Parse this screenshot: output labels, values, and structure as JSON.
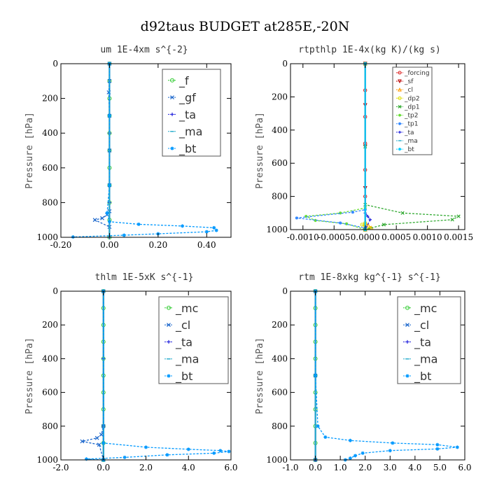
{
  "title": "d92taus  BUDGET at285E,-20N",
  "chart_data": [
    {
      "type": "line",
      "title": "um  1E-4xm s^{-2}",
      "ylabel": "Pressure [hPa]",
      "xlim": [
        -0.2,
        0.5
      ],
      "ylim": [
        1000,
        0
      ],
      "xticks": [
        -0.2,
        0,
        0.2,
        0.4
      ],
      "xtick_labels": [
        "-0.20",
        "0.00",
        "0.20",
        "0.40"
      ],
      "yticks": [
        0,
        200,
        400,
        600,
        800,
        1000
      ],
      "ytick_labels": [
        "0",
        "200",
        "400",
        "600",
        "800",
        "1000"
      ],
      "legend_style": "large",
      "series": [
        {
          "name": "_f",
          "color": "#33cc33",
          "marker": "o",
          "x": [
            0.0,
            0.0,
            0.0,
            0.0,
            0.0,
            0.0,
            0.0,
            0.0,
            0.0,
            0.0,
            0.0
          ],
          "y": [
            0,
            100,
            200,
            300,
            400,
            500,
            600,
            700,
            800,
            900,
            1000
          ]
        },
        {
          "name": "_gf",
          "color": "#1a66cc",
          "marker": "x",
          "x": [
            0.0,
            0.0,
            -0.003,
            0.0,
            0.0,
            0.0,
            0.0,
            -0.01,
            -0.03,
            -0.06,
            0.0
          ],
          "y": [
            0,
            100,
            165,
            300,
            500,
            700,
            850,
            870,
            890,
            900,
            940
          ]
        },
        {
          "name": "_ta",
          "color": "#2222dd",
          "marker": "+",
          "x": [
            0.0,
            0.0,
            0.0,
            0.0
          ],
          "y": [
            0,
            400,
            800,
            1000
          ]
        },
        {
          "name": "_ma",
          "color": "#22aacc",
          "marker": "-",
          "x": [
            0.0,
            0.0,
            0.0
          ],
          "y": [
            0,
            500,
            1000
          ]
        },
        {
          "name": "_bt",
          "color": "#0099ff",
          "marker": "*",
          "x": [
            0.0,
            0.0,
            0.0,
            -0.01,
            0.0,
            0.12,
            0.3,
            0.43,
            0.44,
            0.4,
            0.2,
            0.06,
            -0.15
          ],
          "y": [
            0,
            300,
            700,
            860,
            910,
            925,
            935,
            945,
            960,
            968,
            980,
            988,
            998
          ]
        }
      ]
    },
    {
      "type": "line",
      "title": "rtpthlp  1E-4x(kg K)/(kg s)",
      "ylabel": "Pressure [hPa]",
      "xlim": [
        -0.0012,
        0.0016
      ],
      "ylim": [
        1000,
        0
      ],
      "xticks": [
        -0.001,
        -0.0005,
        0,
        0.0005,
        0.001,
        0.0015
      ],
      "xtick_labels": [
        "-0.0010",
        "-0.0005",
        "0.0000",
        "0.0005",
        "0.0010",
        "0.0015"
      ],
      "yticks": [
        0,
        200,
        400,
        600,
        800,
        1000
      ],
      "ytick_labels": [
        "0",
        "200",
        "400",
        "600",
        "800",
        "1000"
      ],
      "legend_style": "small",
      "series": [
        {
          "name": "_forcing",
          "color": "#dd2222",
          "marker": "o",
          "x": [
            0.0,
            0.0,
            0.0,
            0.0,
            0.0,
            0.0,
            0.0
          ],
          "y": [
            0,
            160,
            320,
            480,
            640,
            800,
            1000
          ]
        },
        {
          "name": "_sf",
          "color": "#bb0000",
          "marker": "v",
          "x": [
            0.0,
            0.0,
            0.0,
            0.0,
            0.0
          ],
          "y": [
            0,
            250,
            500,
            750,
            1000
          ]
        },
        {
          "name": "_cl",
          "color": "#ff9900",
          "marker": "^",
          "x": [
            0.0,
            0.0,
            5e-05,
            0.0001,
            0.0
          ],
          "y": [
            0,
            960,
            975,
            990,
            1000
          ]
        },
        {
          "name": "_dp2",
          "color": "#dddd00",
          "marker": "o",
          "x": [
            0.0,
            -5e-05,
            0.0,
            8e-05,
            0.0
          ],
          "y": [
            960,
            970,
            980,
            990,
            1000
          ]
        },
        {
          "name": "_dp1",
          "color": "#33aa33",
          "marker": "x",
          "x": [
            0.0,
            0.0,
            0.0,
            0.0006,
            0.0015,
            0.0014,
            0.0003,
            0.0
          ],
          "y": [
            0,
            500,
            850,
            900,
            920,
            940,
            970,
            1000
          ]
        },
        {
          "name": "_tp2",
          "color": "#66dd33",
          "marker": "*",
          "x": [
            0.0,
            0.0,
            -0.0004,
            -0.00095,
            -0.0008,
            -0.0003,
            0.0
          ],
          "y": [
            0,
            870,
            900,
            920,
            945,
            965,
            1000
          ]
        },
        {
          "name": "_tp1",
          "color": "#3388ff",
          "marker": "*",
          "x": [
            0.0,
            0.0,
            -0.0002,
            -0.0011,
            -0.0004,
            0.0
          ],
          "y": [
            0,
            880,
            895,
            930,
            960,
            990
          ]
        },
        {
          "name": "_ta",
          "color": "#2222dd",
          "marker": "+",
          "x": [
            0.0,
            0.0,
            4e-05,
            8e-05,
            0.0
          ],
          "y": [
            0,
            900,
            920,
            940,
            1000
          ]
        },
        {
          "name": "_ma",
          "color": "#22aacc",
          "marker": "-",
          "x": [
            0.0,
            0.0
          ],
          "y": [
            0,
            1000
          ]
        },
        {
          "name": "_bt",
          "color": "#00ccff",
          "marker": "*",
          "x": [
            0.0,
            0.0
          ],
          "y": [
            0,
            1000
          ]
        }
      ]
    },
    {
      "type": "line",
      "title": "thlm  1E-5xK s^{-1}",
      "ylabel": "Pressure [hPa]",
      "xlim": [
        -2.0,
        6.0
      ],
      "ylim": [
        1000,
        0
      ],
      "xticks": [
        -2,
        0,
        2,
        4,
        6
      ],
      "xtick_labels": [
        "-2.0",
        "0.0",
        "2.0",
        "4.0",
        "6.0"
      ],
      "yticks": [
        0,
        200,
        400,
        600,
        800,
        1000
      ],
      "ytick_labels": [
        "0",
        "200",
        "400",
        "600",
        "800",
        "1000"
      ],
      "legend_style": "large",
      "series": [
        {
          "name": "_mc",
          "color": "#33cc33",
          "marker": "o",
          "x": [
            0.0,
            0.0,
            0.0,
            0.0,
            0.0,
            0.0,
            0.0,
            0.0,
            0.0,
            0.0,
            0.0
          ],
          "y": [
            0,
            100,
            200,
            300,
            400,
            500,
            600,
            700,
            800,
            900,
            1000
          ]
        },
        {
          "name": "_cl",
          "color": "#1a66cc",
          "marker": "x",
          "x": [
            0.0,
            0.0,
            -0.1,
            -0.3,
            -1.0,
            -0.2,
            0.0
          ],
          "y": [
            0,
            800,
            850,
            870,
            890,
            910,
            1000
          ]
        },
        {
          "name": "_ta",
          "color": "#2222dd",
          "marker": "+",
          "x": [
            0.0,
            0.0,
            0.0,
            0.0
          ],
          "y": [
            0,
            400,
            800,
            1000
          ]
        },
        {
          "name": "_ma",
          "color": "#22aacc",
          "marker": "-",
          "x": [
            0.0,
            0.0
          ],
          "y": [
            0,
            1000
          ]
        },
        {
          "name": "_bt",
          "color": "#0099ff",
          "marker": "*",
          "x": [
            0.0,
            0.0,
            2.0,
            4.0,
            5.5,
            5.9,
            5.2,
            3.0,
            1.0,
            -0.8,
            0.0
          ],
          "y": [
            0,
            900,
            925,
            937,
            945,
            950,
            960,
            970,
            985,
            995,
            1000
          ]
        }
      ]
    },
    {
      "type": "line",
      "title": "rtm  1E-8xkg kg^{-1} s^{-1}",
      "ylabel": "Pressure [hPa]",
      "xlim": [
        -1.0,
        6.0
      ],
      "ylim": [
        1000,
        0
      ],
      "xticks": [
        -1,
        0,
        1,
        2,
        3,
        4,
        5,
        6
      ],
      "xtick_labels": [
        "-1.0",
        "0.0",
        "1.0",
        "2.0",
        "3.0",
        "4.0",
        "5.0",
        "6.0"
      ],
      "yticks": [
        0,
        200,
        400,
        600,
        800,
        1000
      ],
      "ytick_labels": [
        "0",
        "200",
        "400",
        "600",
        "800",
        "1000"
      ],
      "legend_style": "large",
      "series": [
        {
          "name": "_mc",
          "color": "#33cc33",
          "marker": "o",
          "x": [
            0.0,
            0.0,
            0.0,
            0.0,
            0.0,
            0.0,
            0.0,
            0.0,
            0.0,
            0.0,
            0.0
          ],
          "y": [
            0,
            100,
            200,
            300,
            400,
            500,
            600,
            700,
            800,
            900,
            1000
          ]
        },
        {
          "name": "_cl",
          "color": "#1a66cc",
          "marker": "x",
          "x": [
            0.0,
            0.0,
            0.0
          ],
          "y": [
            0,
            500,
            1000
          ]
        },
        {
          "name": "_ta",
          "color": "#2222dd",
          "marker": "+",
          "x": [
            0.0,
            0.0,
            0.0
          ],
          "y": [
            0,
            500,
            1000
          ]
        },
        {
          "name": "_ma",
          "color": "#22aacc",
          "marker": "-",
          "x": [
            0.0,
            0.0
          ],
          "y": [
            0,
            1000
          ]
        },
        {
          "name": "_bt",
          "color": "#0099ff",
          "marker": "*",
          "x": [
            0.0,
            0.0,
            0.1,
            0.4,
            1.4,
            3.1,
            4.9,
            5.7,
            4.9,
            3.0,
            1.9,
            1.6,
            1.4,
            1.2
          ],
          "y": [
            0,
            500,
            800,
            865,
            885,
            900,
            910,
            925,
            935,
            945,
            960,
            975,
            990,
            1000
          ]
        }
      ]
    }
  ]
}
